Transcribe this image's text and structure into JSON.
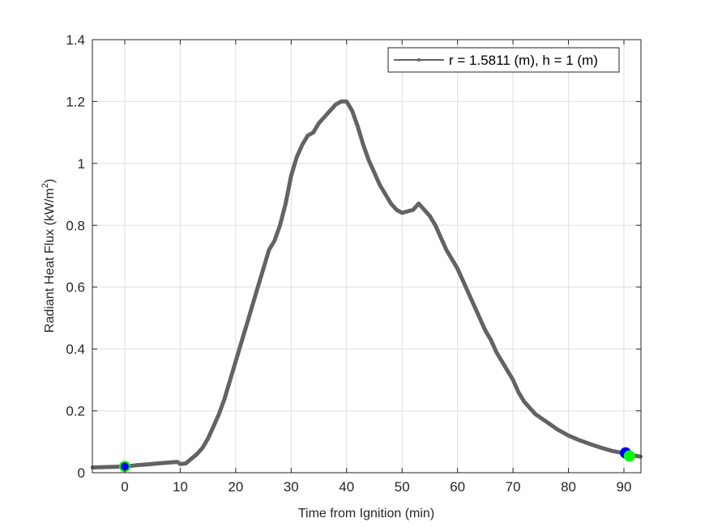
{
  "chart_data": {
    "type": "line",
    "title": "",
    "xlabel": "Time from Ignition (min)",
    "ylabel_main": "Radiant Heat Flux (kW/m",
    "ylabel_sup": "2",
    "ylabel_end": ")",
    "ylabel": "Radiant Heat Flux (kW/m^2)",
    "xlim": [
      -5.84,
      93.07
    ],
    "ylim": [
      0,
      1.4
    ],
    "xticks": [
      0,
      10,
      20,
      30,
      40,
      50,
      60,
      70,
      80,
      90
    ],
    "yticks": [
      0,
      0.2,
      0.4,
      0.6,
      0.8,
      1,
      1.2,
      1.4
    ],
    "ytick_labels": [
      "0",
      "0.2",
      "0.4",
      "0.6",
      "0.8",
      "1",
      "1.2",
      "1.4"
    ],
    "grid": true,
    "legend_position": "northeast",
    "series": [
      {
        "name": "r = 1.5811 (m), h = 1 (m)",
        "color": "#636363",
        "x": [
          -5.8,
          -4,
          -2,
          0,
          2,
          4,
          6,
          8,
          9.5,
          10,
          11,
          12,
          13,
          14,
          15,
          16,
          17,
          18,
          19,
          20,
          21,
          22,
          23,
          24,
          25,
          26,
          27,
          28,
          29,
          30,
          31,
          32,
          33,
          34,
          35,
          36,
          37,
          38,
          39,
          40,
          41,
          42,
          43,
          44,
          45,
          46,
          47,
          48,
          49,
          50,
          51,
          52,
          53,
          54,
          55,
          56,
          57,
          58,
          59,
          60,
          61,
          62,
          63,
          64,
          65,
          66,
          67,
          68,
          69,
          70,
          71,
          72,
          74,
          76,
          78,
          80,
          82,
          84,
          86,
          88,
          90,
          92,
          93
        ],
        "y": [
          0.017,
          0.018,
          0.019,
          0.02,
          0.024,
          0.027,
          0.03,
          0.033,
          0.035,
          0.028,
          0.03,
          0.045,
          0.06,
          0.08,
          0.11,
          0.15,
          0.19,
          0.24,
          0.3,
          0.36,
          0.42,
          0.48,
          0.54,
          0.6,
          0.66,
          0.72,
          0.75,
          0.8,
          0.87,
          0.96,
          1.02,
          1.06,
          1.09,
          1.1,
          1.13,
          1.15,
          1.17,
          1.19,
          1.2,
          1.2,
          1.17,
          1.12,
          1.06,
          1.01,
          0.97,
          0.93,
          0.9,
          0.87,
          0.85,
          0.84,
          0.845,
          0.85,
          0.87,
          0.85,
          0.83,
          0.8,
          0.76,
          0.72,
          0.69,
          0.66,
          0.62,
          0.58,
          0.54,
          0.5,
          0.46,
          0.43,
          0.39,
          0.36,
          0.33,
          0.3,
          0.26,
          0.23,
          0.19,
          0.165,
          0.14,
          0.12,
          0.105,
          0.092,
          0.08,
          0.07,
          0.063,
          0.055,
          0.052
        ]
      }
    ],
    "markers": [
      {
        "name": "start-marker-blue",
        "x": 0,
        "y": 0.02,
        "fill": "#0000ff",
        "stroke": "#00ff00"
      },
      {
        "name": "end-marker-blue",
        "x": 90.3,
        "y": 0.064,
        "fill": "#0000ff",
        "stroke": "#0000ff"
      },
      {
        "name": "end-marker-green",
        "x": 91.0,
        "y": 0.054,
        "fill": "#00ff00",
        "stroke": "#00ff00"
      }
    ]
  },
  "legend": {
    "label": "r = 1.5811 (m), h = 1 (m)"
  }
}
